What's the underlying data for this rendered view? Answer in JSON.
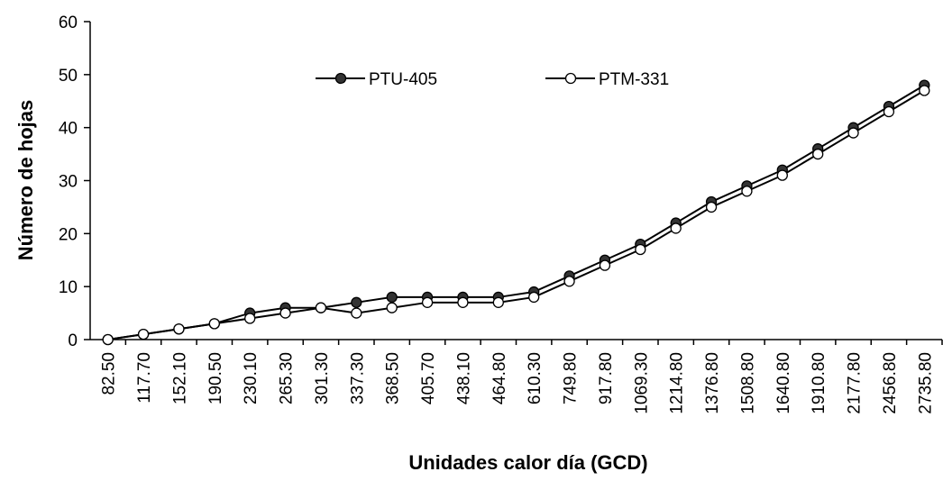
{
  "chart_data": {
    "type": "line",
    "xlabel": "Unidades calor día (GCD)",
    "ylabel": "Número de hojas",
    "categories": [
      "82.50",
      "117.70",
      "152.10",
      "190.50",
      "230.10",
      "265.30",
      "301.30",
      "337.30",
      "368.50",
      "405.70",
      "438.10",
      "464.80",
      "610.30",
      "749.80",
      "917.80",
      "1069.30",
      "1214.80",
      "1376.80",
      "1508.80",
      "1640.80",
      "1910.80",
      "2177.80",
      "2456.80",
      "2735.80"
    ],
    "series": [
      {
        "name": "PTU-405",
        "color": "#000000",
        "marker_fill": "#333333",
        "values": [
          0,
          1,
          2,
          3,
          5,
          6,
          6,
          7,
          8,
          8,
          8,
          8,
          9,
          12,
          15,
          18,
          22,
          26,
          29,
          32,
          36,
          40,
          44,
          48
        ]
      },
      {
        "name": "PTM-331",
        "color": "#000000",
        "marker_fill": "#ffffff",
        "values": [
          0,
          1,
          2,
          3,
          4,
          5,
          6,
          5,
          6,
          7,
          7,
          7,
          8,
          11,
          14,
          17,
          21,
          25,
          28,
          31,
          35,
          39,
          43,
          47
        ]
      }
    ],
    "ylim": [
      0,
      60
    ],
    "yticks": [
      0,
      10,
      20,
      30,
      40,
      50,
      60
    ],
    "grid": false,
    "legend": "top"
  }
}
